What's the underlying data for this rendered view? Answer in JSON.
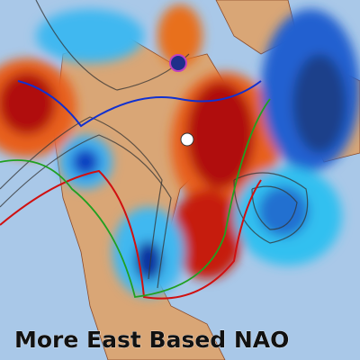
{
  "caption": "More East Based NAO"
}
